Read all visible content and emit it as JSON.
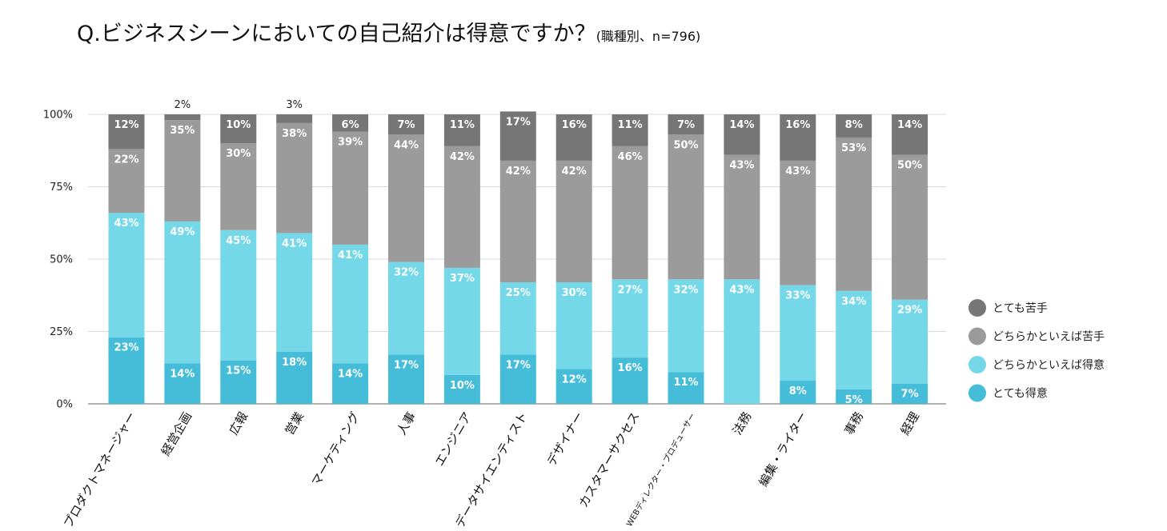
{
  "title_main": "Q.ビジネスシーンにおいての自己紹介は得意ですか？",
  "title_sub": "(職種別、n=796)",
  "chart_data": {
    "type": "bar",
    "stacked": true,
    "title": "Q.ビジネスシーンにおいての自己紹介は得意ですか？(職種別、n=796)",
    "ylim": [
      0,
      100
    ],
    "y_ticks": [
      "0%",
      "25%",
      "50%",
      "75%",
      "100%"
    ],
    "categories": [
      "プロダクトマネージャー",
      "経営企画",
      "広報",
      "営業",
      "マーケティング",
      "人事",
      "エンジニア",
      "データサイエンティスト",
      "デザイナー",
      "カスタマーサクセス",
      "WEBディレクター・プロデューサー",
      "法務",
      "編集・ライター",
      "事務",
      "経理"
    ],
    "series": [
      {
        "name": "とても得意",
        "color": "#45BCD8",
        "values": [
          23,
          14,
          15,
          18,
          14,
          17,
          10,
          17,
          12,
          16,
          11,
          0,
          8,
          5,
          7
        ],
        "labels": [
          "23%",
          "14%",
          "15%",
          "18%",
          "14%",
          "17%",
          "10%",
          "17%",
          "12%",
          "16%",
          "11%",
          "",
          "8%",
          "5%",
          "7%"
        ]
      },
      {
        "name": "どちらかといえば得意",
        "color": "#74D8E8",
        "values": [
          43,
          49,
          45,
          41,
          41,
          32,
          37,
          25,
          30,
          27,
          32,
          43,
          33,
          34,
          29
        ],
        "labels": [
          "43%",
          "49%",
          "45%",
          "41%",
          "41%",
          "32%",
          "37%",
          "25%",
          "30%",
          "27%",
          "32%",
          "43%",
          "33%",
          "34%",
          "29%"
        ]
      },
      {
        "name": "どちらかといえば苦手",
        "color": "#9B9B9B",
        "values": [
          22,
          35,
          30,
          38,
          39,
          44,
          42,
          42,
          42,
          46,
          50,
          43,
          43,
          53,
          50
        ],
        "labels": [
          "22%",
          "35%",
          "30%",
          "38%",
          "39%",
          "44%",
          "42%",
          "42%",
          "42%",
          "46%",
          "50%",
          "43%",
          "43%",
          "53%",
          "50%"
        ]
      },
      {
        "name": "とても苦手",
        "color": "#767676",
        "values": [
          12,
          2,
          10,
          3,
          6,
          7,
          11,
          17,
          16,
          11,
          7,
          14,
          16,
          8,
          14
        ],
        "labels": [
          "12%",
          "2%",
          "10%",
          "3%",
          "6%",
          "7%",
          "11%",
          "17%",
          "16%",
          "11%",
          "7%",
          "14%",
          "16%",
          "8%",
          "14%"
        ]
      }
    ],
    "legend_order": [
      "とても苦手",
      "どちらかといえば苦手",
      "どちらかといえば得意",
      "とても得意"
    ],
    "legend_position": "right",
    "grid": true
  }
}
